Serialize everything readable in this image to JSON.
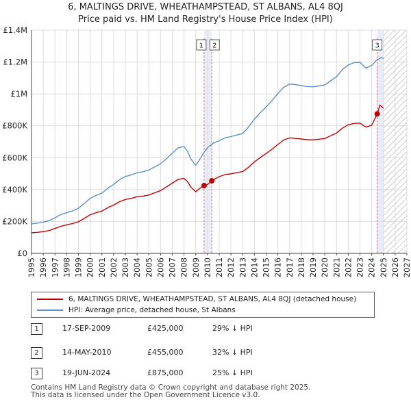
{
  "title": {
    "line1": "6, MALTINGS DRIVE, WHEATHAMPSTEAD, ST ALBANS, AL4 8QJ",
    "line2": "Price paid vs. HM Land Registry's House Price Index (HPI)"
  },
  "legend": {
    "property": "6, MALTINGS DRIVE, WHEATHAMPSTEAD, ST ALBANS, AL4 8QJ (detached house)",
    "hpi": "HPI: Average price, detached house, St Albans"
  },
  "transactions": [
    {
      "id": "1",
      "date": "17-SEP-2009",
      "price": "£425,000",
      "diff": "29% ↓ HPI"
    },
    {
      "id": "2",
      "date": "14-MAY-2010",
      "price": "£455,000",
      "diff": "32% ↓ HPI"
    },
    {
      "id": "3",
      "date": "19-JUN-2024",
      "price": "£875,000",
      "diff": "25% ↓ HPI"
    }
  ],
  "footer": {
    "line1": "Contains HM Land Registry data © Crown copyright and database right 2025.",
    "line2": "This data is licensed under the Open Government Licence v3.0."
  },
  "colors": {
    "property": "#c00000",
    "hpi": "#5b8fc7",
    "grid": "#dcdcdc",
    "marker_line": "#dc6e7d",
    "highlight": "#e8eef8",
    "hatch": "#b4b4b4"
  },
  "chart_data": {
    "type": "line",
    "xlim": [
      1995,
      2027
    ],
    "ylim": [
      0,
      1400000
    ],
    "x_ticks": [
      "1995",
      "1996",
      "1997",
      "1998",
      "1999",
      "2000",
      "2001",
      "2002",
      "2003",
      "2004",
      "2005",
      "2006",
      "2007",
      "2008",
      "2009",
      "2010",
      "2011",
      "2012",
      "2013",
      "2014",
      "2015",
      "2016",
      "2017",
      "2018",
      "2019",
      "2020",
      "2021",
      "2022",
      "2023",
      "2024",
      "2025",
      "2026",
      "2027"
    ],
    "y_ticks": [
      {
        "value": 0,
        "label": "£0"
      },
      {
        "value": 200000,
        "label": "£200K"
      },
      {
        "value": 400000,
        "label": "£400K"
      },
      {
        "value": 600000,
        "label": "£600K"
      },
      {
        "value": 800000,
        "label": "£800K"
      },
      {
        "value": 1000000,
        "label": "£1M"
      },
      {
        "value": 1200000,
        "label": "£1.2M"
      },
      {
        "value": 1400000,
        "label": "£1.4M"
      }
    ],
    "future_start": 2025.0,
    "series": [
      {
        "name": "HPI: Average price, detached house, St Albans",
        "x": [
          1995.0,
          1995.5,
          1996.0,
          1996.5,
          1997.0,
          1997.5,
          1998.0,
          1998.5,
          1999.0,
          1999.5,
          2000.0,
          2000.5,
          2001.0,
          2001.5,
          2002.0,
          2002.5,
          2003.0,
          2003.5,
          2004.0,
          2004.5,
          2005.0,
          2005.5,
          2006.0,
          2006.5,
          2007.0,
          2007.5,
          2008.0,
          2008.3,
          2008.6,
          2009.0,
          2009.3,
          2009.7,
          2010.0,
          2010.5,
          2011.0,
          2011.5,
          2012.0,
          2012.5,
          2013.0,
          2013.5,
          2014.0,
          2014.5,
          2015.0,
          2015.5,
          2016.0,
          2016.5,
          2017.0,
          2017.5,
          2018.0,
          2018.5,
          2019.0,
          2019.5,
          2020.0,
          2020.5,
          2021.0,
          2021.5,
          2022.0,
          2022.5,
          2023.0,
          2023.5,
          2024.0,
          2024.4,
          2024.8,
          2025.0
        ],
        "values": [
          185000,
          190000,
          196000,
          205000,
          223000,
          243000,
          255000,
          266000,
          283000,
          312000,
          345000,
          363000,
          378000,
          408000,
          432000,
          462000,
          482000,
          492000,
          505000,
          512000,
          522000,
          542000,
          562000,
          593000,
          628000,
          662000,
          670000,
          640000,
          590000,
          552000,
          585000,
          632000,
          662000,
          692000,
          706000,
          725000,
          732000,
          742000,
          752000,
          792000,
          842000,
          882000,
          918000,
          958000,
          1002000,
          1042000,
          1062000,
          1058000,
          1052000,
          1046000,
          1045000,
          1050000,
          1056000,
          1082000,
          1108000,
          1152000,
          1182000,
          1196000,
          1198000,
          1162000,
          1178000,
          1210000,
          1228000,
          1222000
        ]
      },
      {
        "name": "6, MALTINGS DRIVE, WHEATHAMPSTEAD, ST ALBANS, AL4 8QJ (detached house)",
        "x": [
          1995.0,
          1995.5,
          1996.0,
          1996.5,
          1997.0,
          1997.5,
          1998.0,
          1998.5,
          1999.0,
          1999.5,
          2000.0,
          2000.5,
          2001.0,
          2001.5,
          2002.0,
          2002.5,
          2003.0,
          2003.5,
          2004.0,
          2004.5,
          2005.0,
          2005.5,
          2006.0,
          2006.5,
          2007.0,
          2007.5,
          2008.0,
          2008.3,
          2008.6,
          2009.0,
          2009.3,
          2009.71,
          2010.0,
          2010.37,
          2010.7,
          2011.0,
          2011.5,
          2012.0,
          2012.5,
          2013.0,
          2013.5,
          2014.0,
          2014.5,
          2015.0,
          2015.5,
          2016.0,
          2016.5,
          2017.0,
          2017.5,
          2018.0,
          2018.5,
          2019.0,
          2019.5,
          2020.0,
          2020.5,
          2021.0,
          2021.5,
          2022.0,
          2022.5,
          2023.0,
          2023.5,
          2024.0,
          2024.47,
          2024.7,
          2025.0
        ],
        "values": [
          129000,
          132000,
          136000,
          143000,
          156000,
          170000,
          179000,
          187000,
          198000,
          219000,
          242000,
          255000,
          265000,
          286000,
          303000,
          324000,
          338000,
          345000,
          355000,
          359000,
          366000,
          380000,
          394000,
          416000,
          440000,
          464000,
          470000,
          449000,
          414000,
          387000,
          405000,
          425000,
          432000,
          455000,
          470000,
          481000,
          494000,
          499000,
          506000,
          513000,
          540000,
          574000,
          601000,
          626000,
          653000,
          683000,
          711000,
          724000,
          721000,
          717000,
          713000,
          712000,
          716000,
          720000,
          738000,
          755000,
          785000,
          806000,
          815000,
          817000,
          792000,
          803000,
          875000,
          930000,
          910000
        ]
      }
    ],
    "annotations": [
      {
        "label": "1",
        "x": 2009.71,
        "value": 425000
      },
      {
        "label": "2",
        "x": 2010.37,
        "value": 455000
      },
      {
        "label": "3",
        "x": 2024.47,
        "value": 875000
      }
    ]
  }
}
